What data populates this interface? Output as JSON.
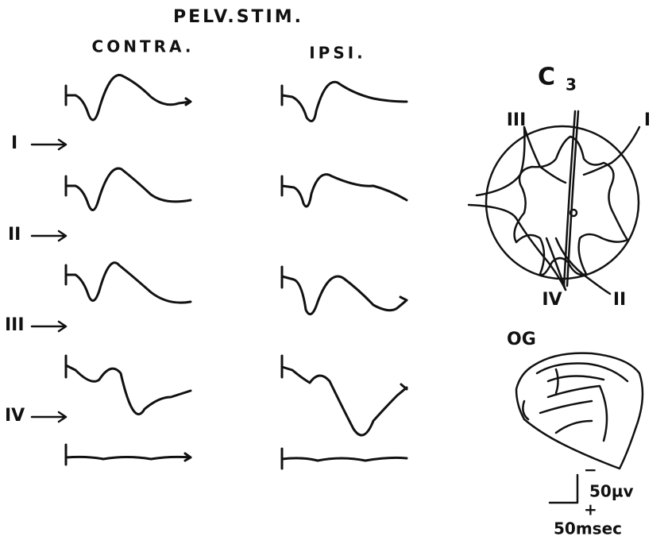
{
  "header": {
    "title": "PELV.STIM.",
    "left_column": "CONTRA.",
    "right_column": "IPSI."
  },
  "rows": [
    {
      "label": "I"
    },
    {
      "label": "II"
    },
    {
      "label": "III"
    },
    {
      "label": "IV"
    }
  ],
  "section": {
    "title": "C",
    "subscript": "3",
    "tract_labels": [
      "III",
      "I",
      "IV",
      "II"
    ]
  },
  "ganglion": {
    "label": "OG"
  },
  "scale": {
    "minus": "−",
    "plus": "+",
    "voltage": "50µv",
    "time": "50msec"
  }
}
